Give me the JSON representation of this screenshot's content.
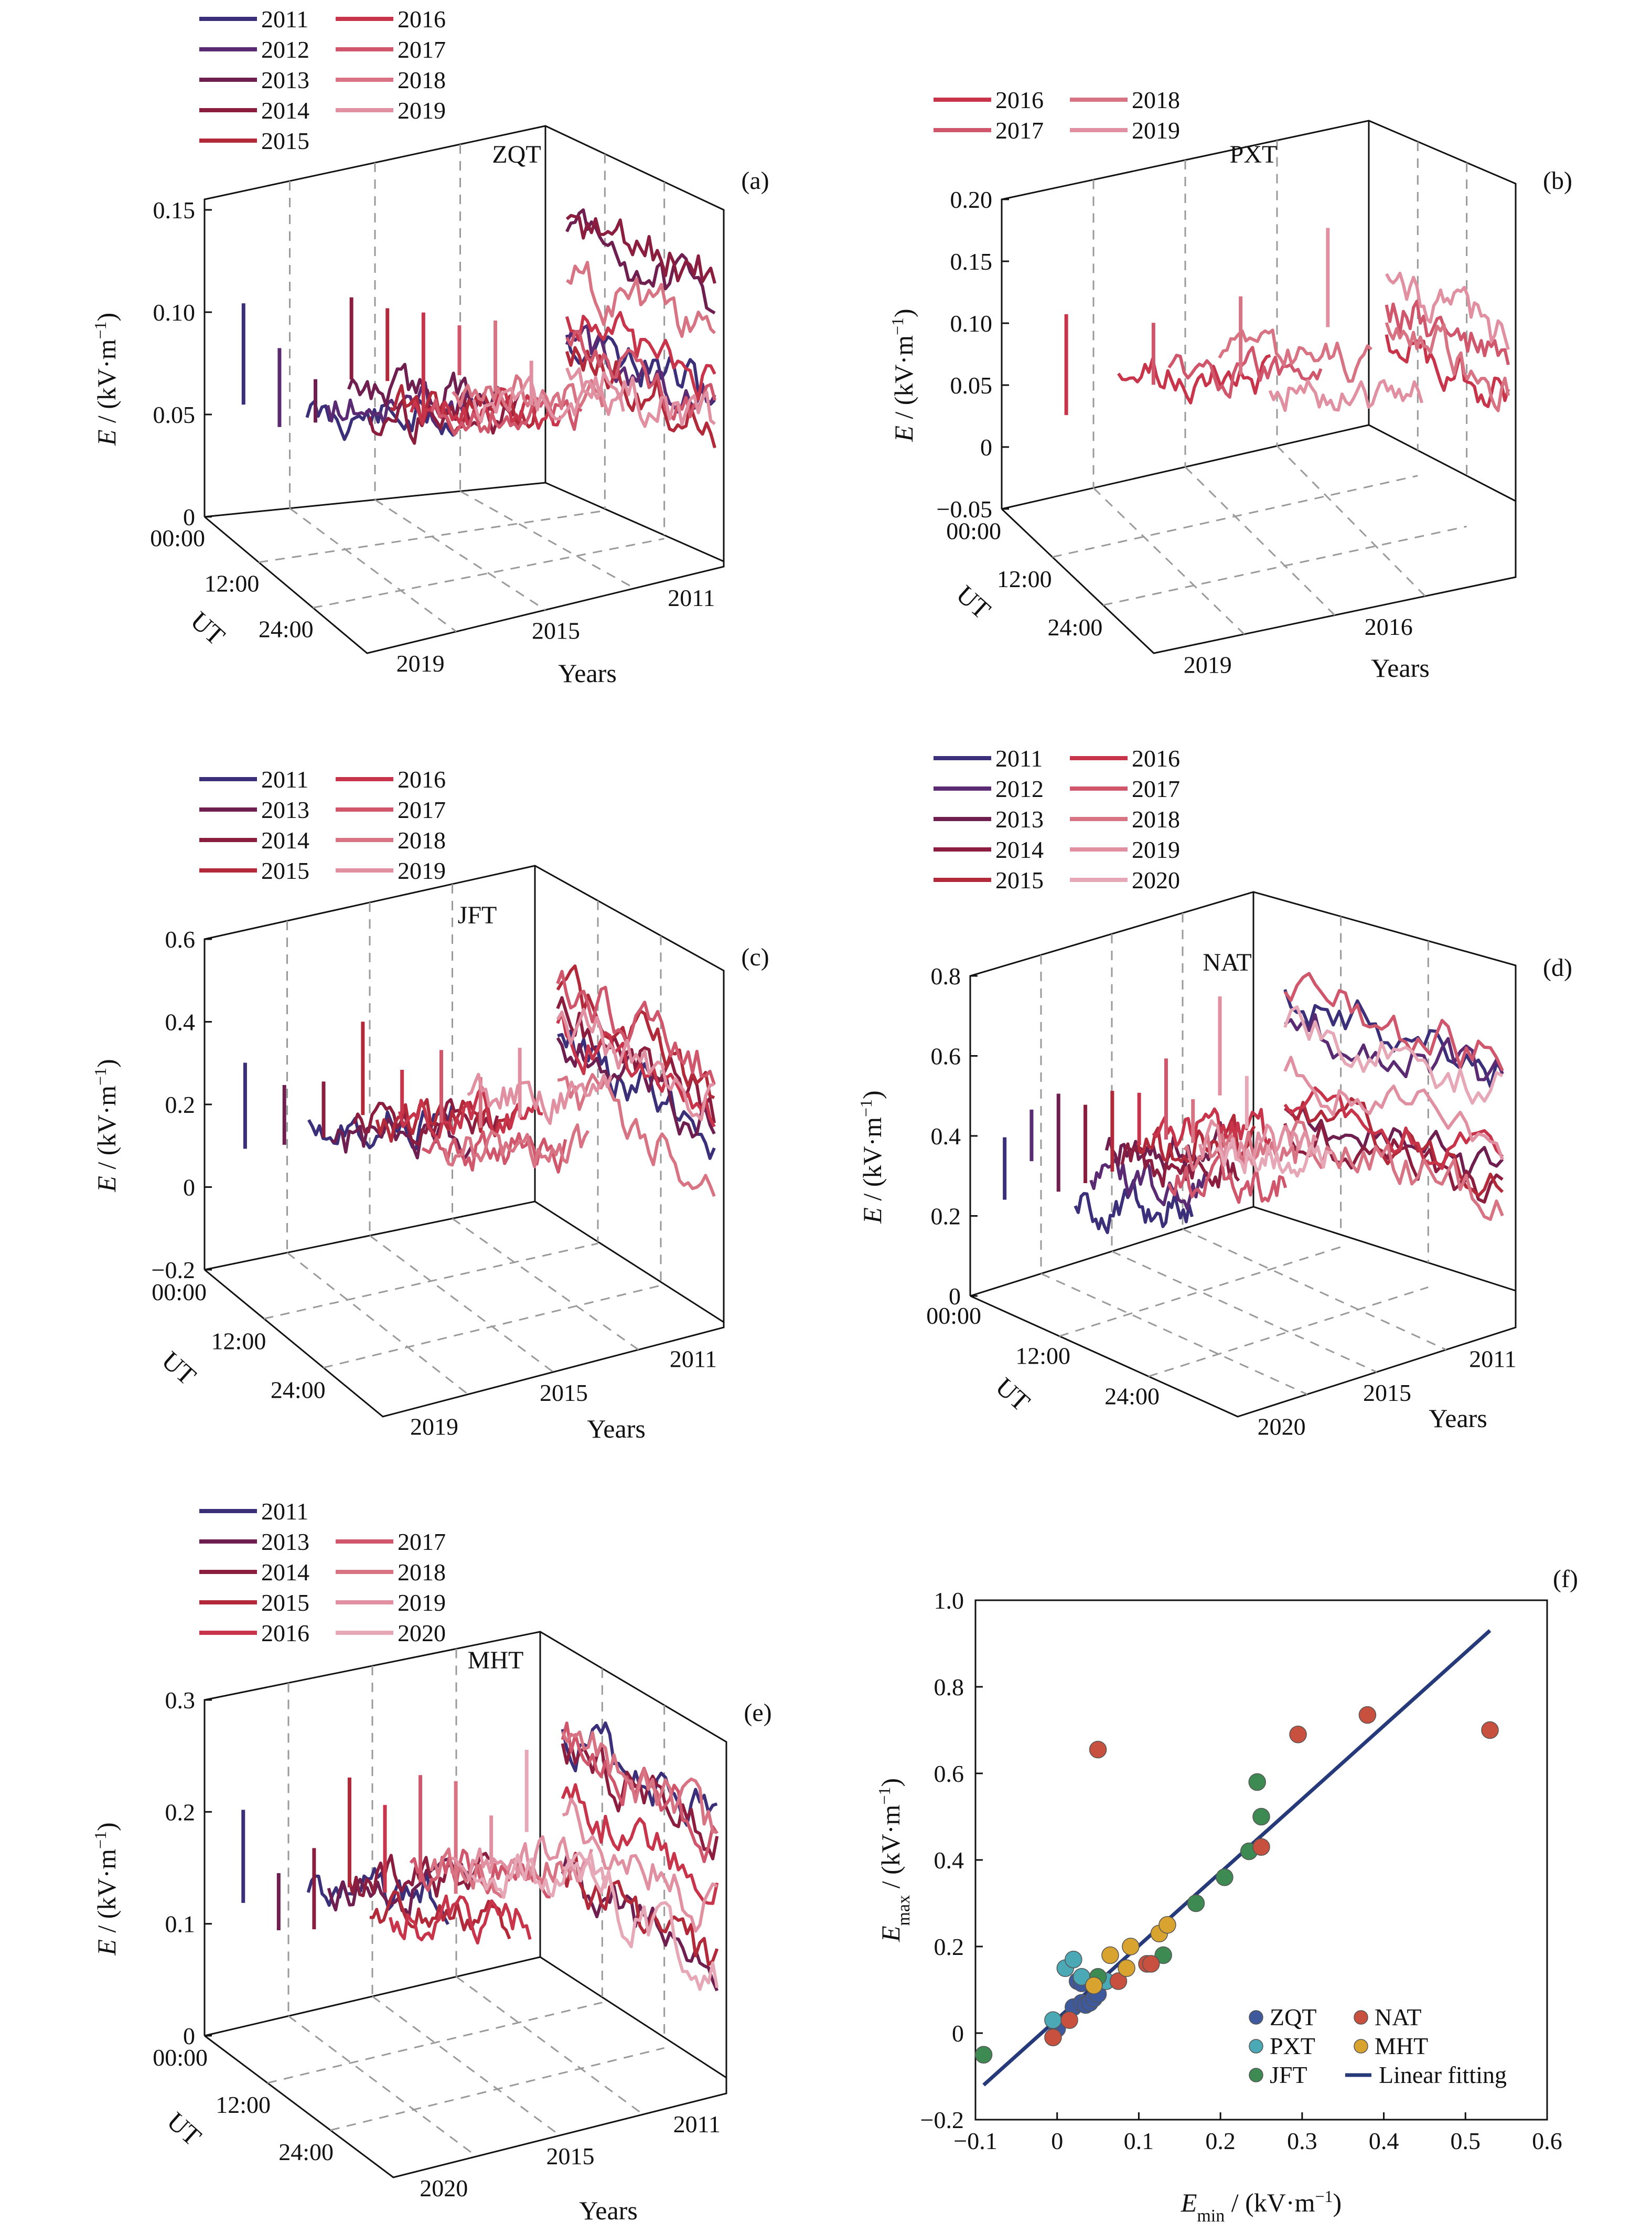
{
  "colors": {
    "y2011": "#3b2f7a",
    "y2012": "#5a2a73",
    "y2013": "#6e1f4f",
    "y2014": "#8b1e3f",
    "y2015": "#b22a3a",
    "y2016": "#c8344a",
    "y2017": "#d0566c",
    "y2018": "#d87384",
    "y2019": "#e090a0",
    "y2020": "#e6a8b6",
    "ZQT": "#3e5a9c",
    "PXT": "#4aa9b5",
    "JFT": "#3d8a52",
    "NAT": "#c8503f",
    "MHT": "#d8a32e",
    "fit": "#263a7a"
  },
  "common": {
    "ylabel_e": "E",
    "ylabel_unit": "/ (kV·m",
    "ylabel_exp": "−1",
    "ylabel_close": ")",
    "ut_label": "UT",
    "years_label": "Years",
    "ut_ticks": [
      "00:00",
      "12:00",
      "24:00"
    ]
  },
  "chart_data": [
    {
      "panel": "(a)",
      "station": "ZQT",
      "type": "line",
      "legend": [
        "2011",
        "2012",
        "2013",
        "2014",
        "2015",
        "2016",
        "2017",
        "2018",
        "2019"
      ],
      "yticks": [
        "0",
        "0.05",
        "0.10",
        "0.15"
      ],
      "ylim": [
        0,
        0.15
      ],
      "year_ticks": [
        "2019",
        "2015",
        "2011"
      ]
    },
    {
      "panel": "(b)",
      "station": "PXT",
      "type": "line",
      "legend": [
        "2016",
        "2017",
        "2018",
        "2019"
      ],
      "yticks": [
        "−0.05",
        "0",
        "0.05",
        "0.10",
        "0.15",
        "0.20"
      ],
      "ylim": [
        -0.05,
        0.2
      ],
      "year_ticks": [
        "2019",
        "2016"
      ]
    },
    {
      "panel": "(c)",
      "station": "JFT",
      "type": "line",
      "legend": [
        "2011",
        "2013",
        "2014",
        "2015",
        "2016",
        "2017",
        "2018",
        "2019"
      ],
      "yticks": [
        "−0.2",
        "0",
        "0.2",
        "0.4",
        "0.6"
      ],
      "ylim": [
        -0.2,
        0.6
      ],
      "year_ticks": [
        "2019",
        "2015",
        "2011"
      ]
    },
    {
      "panel": "(d)",
      "station": "NAT",
      "type": "line",
      "legend": [
        "2011",
        "2012",
        "2013",
        "2014",
        "2015",
        "2016",
        "2017",
        "2018",
        "2019",
        "2020"
      ],
      "yticks": [
        "0",
        "0.2",
        "0.4",
        "0.6",
        "0.8"
      ],
      "ylim": [
        0,
        0.8
      ],
      "year_ticks": [
        "2020",
        "2015",
        "2011"
      ]
    },
    {
      "panel": "(e)",
      "station": "MHT",
      "type": "line",
      "legend": [
        "2011",
        "2013",
        "2014",
        "2015",
        "2016",
        "2017",
        "2018",
        "2019",
        "2020"
      ],
      "yticks": [
        "0",
        "0.1",
        "0.2",
        "0.3"
      ],
      "ylim": [
        0,
        0.3
      ],
      "year_ticks": [
        "2020",
        "2015",
        "2011"
      ]
    },
    {
      "panel": "(f)",
      "type": "scatter",
      "xlabel": "E",
      "xlabel_sub": "min",
      "xlabel_unit": "/ (kV·m",
      "xlabel_exp": "−1",
      "xlabel_close": ")",
      "ylabel": "E",
      "ylabel_sub": "max",
      "ylabel_unit": "/ (kV·m",
      "ylabel_exp": "−1",
      "ylabel_close": ")",
      "xlim": [
        -0.1,
        0.6
      ],
      "ylim": [
        -0.2,
        1.0
      ],
      "xticks": [
        "−0.1",
        "0",
        "0.1",
        "0.2",
        "0.3",
        "0.4",
        "0.5",
        "0.6"
      ],
      "yticks": [
        "−0.2",
        "0",
        "0.2",
        "0.4",
        "0.6",
        "0.8",
        "1.0"
      ],
      "legend": [
        "ZQT",
        "PXT",
        "JFT",
        "NAT",
        "MHT",
        "Linear fitting"
      ],
      "series": [
        {
          "name": "ZQT",
          "points": [
            [
              0.0,
              0.01
            ],
            [
              0.02,
              0.06
            ],
            [
              0.03,
              0.07
            ],
            [
              0.035,
              0.065
            ],
            [
              0.04,
              0.07
            ],
            [
              0.045,
              0.08
            ],
            [
              0.05,
              0.09
            ],
            [
              0.025,
              0.12
            ],
            [
              0.03,
              0.115
            ]
          ]
        },
        {
          "name": "PXT",
          "points": [
            [
              -0.005,
              0.03
            ],
            [
              0.01,
              0.15
            ],
            [
              0.02,
              0.17
            ],
            [
              0.03,
              0.13
            ],
            [
              0.06,
              0.12
            ]
          ]
        },
        {
          "name": "JFT",
          "points": [
            [
              -0.09,
              -0.05
            ],
            [
              0.05,
              0.13
            ],
            [
              0.13,
              0.18
            ],
            [
              0.17,
              0.3
            ],
            [
              0.205,
              0.36
            ],
            [
              0.235,
              0.42
            ],
            [
              0.245,
              0.58
            ],
            [
              0.25,
              0.5
            ]
          ]
        },
        {
          "name": "NAT",
          "points": [
            [
              -0.005,
              -0.01
            ],
            [
              0.015,
              0.03
            ],
            [
              0.05,
              0.655
            ],
            [
              0.075,
              0.12
            ],
            [
              0.11,
              0.16
            ],
            [
              0.115,
              0.16
            ],
            [
              0.25,
              0.43
            ],
            [
              0.295,
              0.69
            ],
            [
              0.38,
              0.735
            ],
            [
              0.53,
              0.7
            ]
          ]
        },
        {
          "name": "MHT",
          "points": [
            [
              0.045,
              0.11
            ],
            [
              0.065,
              0.18
            ],
            [
              0.085,
              0.15
            ],
            [
              0.09,
              0.2
            ],
            [
              0.125,
              0.23
            ],
            [
              0.135,
              0.25
            ]
          ]
        }
      ],
      "fit": [
        [
          -0.09,
          -0.12
        ],
        [
          0.53,
          0.93
        ]
      ]
    }
  ]
}
